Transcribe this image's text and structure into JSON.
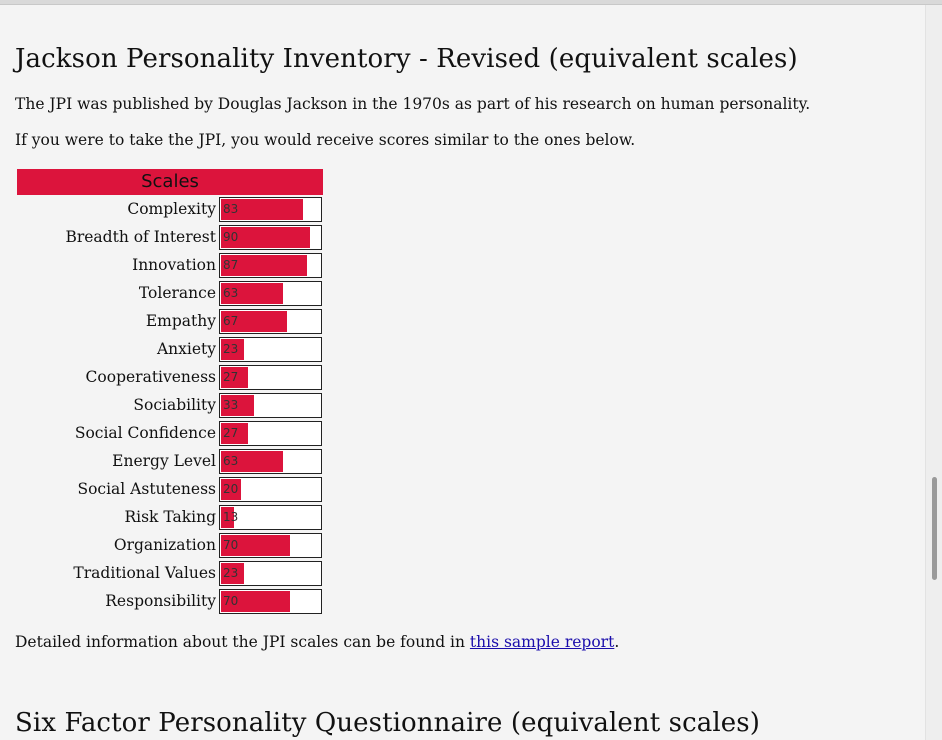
{
  "jpi": {
    "heading": "Jackson Personality Inventory - Revised (equivalent scales)",
    "intro": "The JPI was published by Douglas Jackson in the 1970s as part of his research on human personality.",
    "scores_intro": "If you were to take the JPI, you would receive scores similar to the ones below.",
    "scales_header": "Scales",
    "scales": [
      {
        "label": "Complexity",
        "value": 83
      },
      {
        "label": "Breadth of Interest",
        "value": 90
      },
      {
        "label": "Innovation",
        "value": 87
      },
      {
        "label": "Tolerance",
        "value": 63
      },
      {
        "label": "Empathy",
        "value": 67
      },
      {
        "label": "Anxiety",
        "value": 23
      },
      {
        "label": "Cooperativeness",
        "value": 27
      },
      {
        "label": "Sociability",
        "value": 33
      },
      {
        "label": "Social Confidence",
        "value": 27
      },
      {
        "label": "Energy Level",
        "value": 63
      },
      {
        "label": "Social Astuteness",
        "value": 20
      },
      {
        "label": "Risk Taking",
        "value": 13
      },
      {
        "label": "Organization",
        "value": 70
      },
      {
        "label": "Traditional Values",
        "value": 23
      },
      {
        "label": "Responsibility",
        "value": 70
      }
    ],
    "detail_prefix": "Detailed information about the JPI scales can be found in ",
    "detail_link": "this sample report",
    "detail_suffix": "."
  },
  "next_section": {
    "heading": "Six Factor Personality Questionnaire (equivalent scales)"
  },
  "colors": {
    "bar": "#dc143c",
    "link": "#1a0dab",
    "background": "#f4f4f4"
  }
}
